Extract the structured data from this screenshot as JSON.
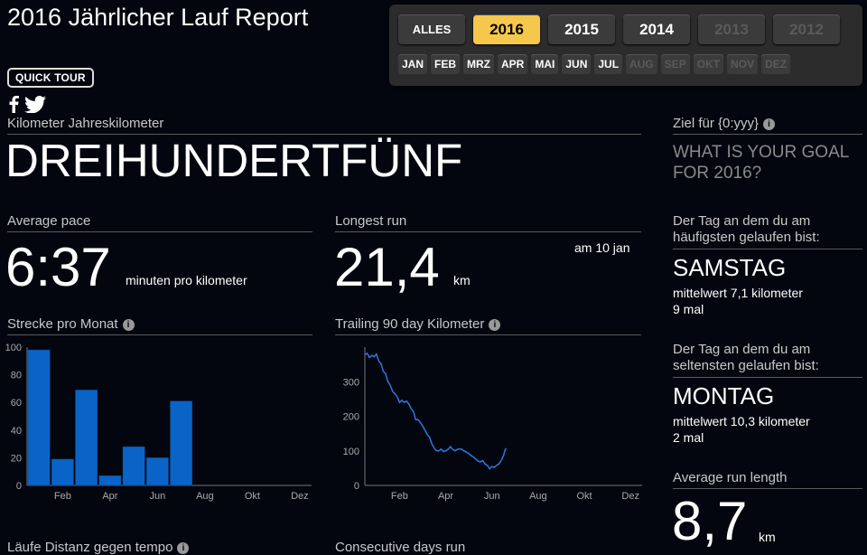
{
  "header": {
    "title": "2016 Jährlicher Lauf Report",
    "quick_tour": "QUICK TOUR"
  },
  "year_buttons": [
    {
      "label": "ALLES",
      "state": "normal"
    },
    {
      "label": "2016",
      "state": "active"
    },
    {
      "label": "2015",
      "state": "normal"
    },
    {
      "label": "2014",
      "state": "normal"
    },
    {
      "label": "2013",
      "state": "disabled"
    },
    {
      "label": "2012",
      "state": "disabled"
    }
  ],
  "month_buttons": [
    {
      "label": "JAN",
      "state": "normal"
    },
    {
      "label": "FEB",
      "state": "normal"
    },
    {
      "label": "MRZ",
      "state": "normal"
    },
    {
      "label": "APR",
      "state": "normal"
    },
    {
      "label": "MAI",
      "state": "normal"
    },
    {
      "label": "JUN",
      "state": "normal"
    },
    {
      "label": "JUL",
      "state": "normal"
    },
    {
      "label": "AUG",
      "state": "disabled"
    },
    {
      "label": "SEP",
      "state": "disabled"
    },
    {
      "label": "OKT",
      "state": "disabled"
    },
    {
      "label": "NOV",
      "state": "disabled"
    },
    {
      "label": "DEZ",
      "state": "disabled"
    }
  ],
  "annual": {
    "label": "Kilometer Jahreskilometer",
    "value": "DREIHUNDERTFÜNF"
  },
  "pace": {
    "label": "Average pace",
    "value": "6:37",
    "unit": "minuten pro kilometer"
  },
  "longest": {
    "label": "Longest run",
    "value": "21,4",
    "unit": "km",
    "date": "am 10 jan"
  },
  "goal": {
    "label": "Ziel für {0:yyy}",
    "prompt": "WHAT IS YOUR GOAL FOR 2016?"
  },
  "most_day": {
    "heading": "Der Tag an dem du am häufigsten gelaufen bist:",
    "day": "SAMSTAG",
    "avg": "mittelwert 7,1 kilometer",
    "count": "9 mal"
  },
  "least_day": {
    "heading": "Der Tag an dem du am seltensten gelaufen bist:",
    "day": "MONTAG",
    "avg": "mittelwert 10,3 kilometer",
    "count": "2 mal"
  },
  "avg_length": {
    "label": "Average run length",
    "value": "8,7",
    "unit": "km"
  },
  "bottom_labels": {
    "left": "Läufe Distanz gegen tempo",
    "mid": "Consecutive days run"
  },
  "colors": {
    "accent": "#f5c84c",
    "bar": "#0a64c8",
    "line": "#2a7ae0"
  },
  "chart_data": [
    {
      "type": "bar",
      "title": "Strecke pro Monat",
      "categories": [
        "Jan",
        "Feb",
        "Mrz",
        "Apr",
        "Mai",
        "Jun",
        "Jul",
        "Aug",
        "Sep",
        "Okt",
        "Nov",
        "Dez"
      ],
      "values": [
        98,
        19,
        69,
        7,
        28,
        20,
        61,
        0,
        0,
        0,
        0,
        0
      ],
      "x_tick_labels": [
        "Feb",
        "Apr",
        "Jun",
        "Aug",
        "Okt",
        "Dez"
      ],
      "y_ticks": [
        "0",
        "20",
        "40",
        "60",
        "80",
        "100"
      ],
      "ylim": [
        0,
        100
      ]
    },
    {
      "type": "line",
      "title": "Trailing 90 day Kilometer",
      "x_tick_labels": [
        "Feb",
        "Apr",
        "Jun",
        "Aug",
        "Okt",
        "Dez"
      ],
      "y_ticks": [
        "0",
        "100",
        "200",
        "300"
      ],
      "ylim": [
        0,
        400
      ],
      "xlim": [
        0,
        12
      ],
      "points": [
        [
          0.0,
          378
        ],
        [
          0.1,
          382
        ],
        [
          0.2,
          370
        ],
        [
          0.3,
          376
        ],
        [
          0.4,
          372
        ],
        [
          0.5,
          380
        ],
        [
          0.6,
          360
        ],
        [
          0.7,
          352
        ],
        [
          0.8,
          330
        ],
        [
          0.9,
          322
        ],
        [
          1.0,
          300
        ],
        [
          1.1,
          290
        ],
        [
          1.2,
          272
        ],
        [
          1.3,
          265
        ],
        [
          1.4,
          256
        ],
        [
          1.5,
          240
        ],
        [
          1.6,
          246
        ],
        [
          1.7,
          240
        ],
        [
          1.8,
          244
        ],
        [
          1.9,
          236
        ],
        [
          2.0,
          222
        ],
        [
          2.1,
          214
        ],
        [
          2.2,
          190
        ],
        [
          2.3,
          190
        ],
        [
          2.4,
          182
        ],
        [
          2.5,
          172
        ],
        [
          2.6,
          160
        ],
        [
          2.7,
          147
        ],
        [
          2.8,
          140
        ],
        [
          2.9,
          120
        ],
        [
          3.0,
          108
        ],
        [
          3.1,
          100
        ],
        [
          3.2,
          100
        ],
        [
          3.3,
          105
        ],
        [
          3.4,
          98
        ],
        [
          3.5,
          100
        ],
        [
          3.6,
          104
        ],
        [
          3.7,
          112
        ],
        [
          3.8,
          104
        ],
        [
          3.9,
          100
        ],
        [
          4.0,
          104
        ],
        [
          4.1,
          106
        ],
        [
          4.2,
          104
        ],
        [
          4.3,
          100
        ],
        [
          4.4,
          96
        ],
        [
          4.5,
          92
        ],
        [
          4.6,
          86
        ],
        [
          4.7,
          82
        ],
        [
          4.8,
          76
        ],
        [
          4.9,
          70
        ],
        [
          5.0,
          68
        ],
        [
          5.1,
          72
        ],
        [
          5.2,
          62
        ],
        [
          5.3,
          58
        ],
        [
          5.4,
          48
        ],
        [
          5.5,
          55
        ],
        [
          5.6,
          52
        ],
        [
          5.7,
          58
        ],
        [
          5.8,
          62
        ],
        [
          5.9,
          72
        ],
        [
          6.0,
          86
        ],
        [
          6.05,
          98
        ],
        [
          6.1,
          108
        ]
      ]
    }
  ]
}
